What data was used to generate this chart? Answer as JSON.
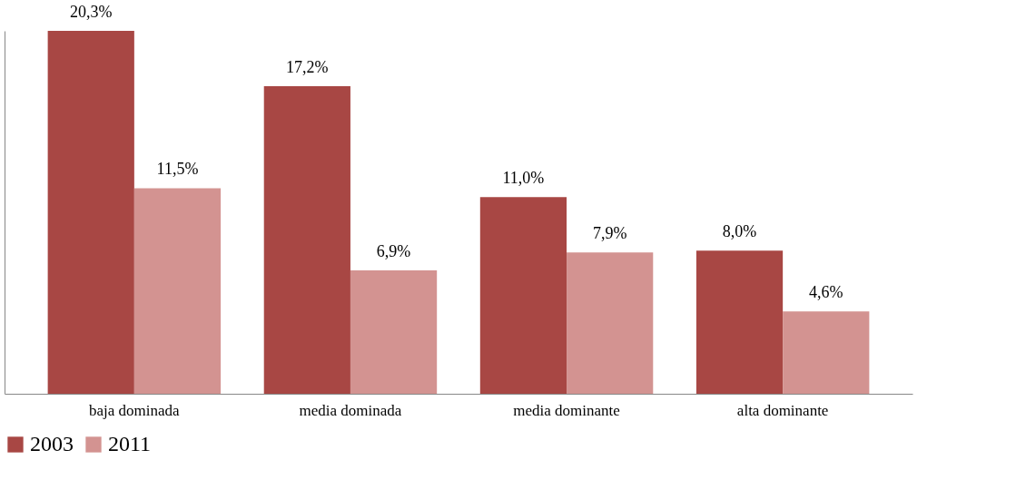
{
  "chart_data": {
    "type": "bar",
    "categories": [
      "baja dominada",
      "media dominada",
      "media dominante",
      "alta dominante"
    ],
    "series": [
      {
        "name": "2003",
        "color": "#a84744",
        "values": [
          20.3,
          17.2,
          11.0,
          8.0
        ],
        "value_labels": [
          "20,3%",
          "17,2%",
          "11,0%",
          "8,0%"
        ]
      },
      {
        "name": "2011",
        "color": "#d39391",
        "values": [
          11.5,
          6.9,
          7.9,
          4.6
        ],
        "value_labels": [
          "11,5%",
          "6,9%",
          "7,9%",
          "4,6%"
        ]
      }
    ],
    "legend": "bottom",
    "grid": false
  }
}
